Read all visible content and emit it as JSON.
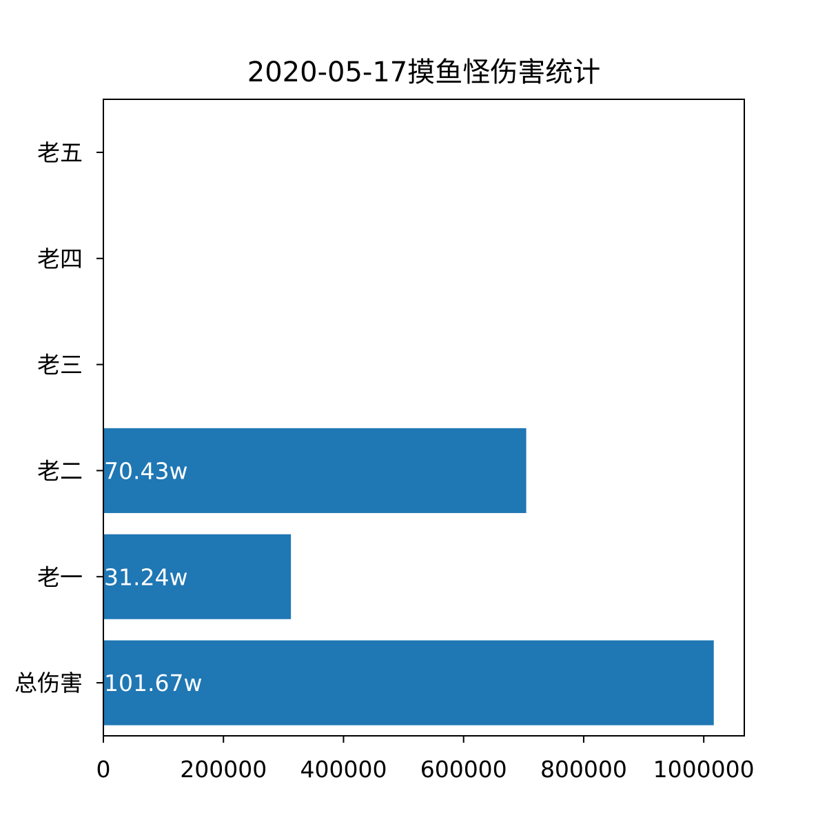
{
  "chart_data": {
    "type": "bar",
    "orientation": "horizontal",
    "title": "2020-05-17摸鱼怪伤害统计",
    "xlabel": "",
    "ylabel": "",
    "categories": [
      "总伤害",
      "老一",
      "老二",
      "老三",
      "老四",
      "老五"
    ],
    "values": [
      1016700,
      312400,
      704300,
      0,
      0,
      0
    ],
    "bar_labels": [
      "101.67w",
      "31.24w",
      "70.43w",
      "",
      "",
      ""
    ],
    "xlim": [
      0,
      1067535
    ],
    "x_ticks": [
      0,
      200000,
      400000,
      600000,
      800000,
      1000000
    ],
    "x_tick_labels": [
      "0",
      "200000",
      "400000",
      "600000",
      "800000",
      "1000000"
    ],
    "grid": false,
    "legend": "none",
    "colors": {
      "bar": "#1f77b4",
      "bar_label": "#ffffff",
      "axes": "#000000",
      "background": "#ffffff"
    }
  }
}
